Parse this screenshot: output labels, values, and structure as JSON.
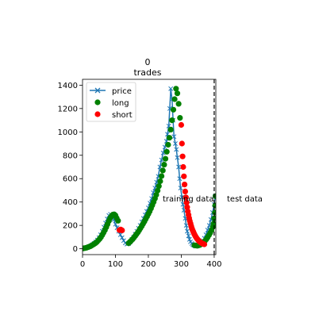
{
  "chart_data": {
    "type": "line",
    "title": "0\ntrades",
    "title_lines": [
      "0",
      "trades"
    ],
    "xlabel": "",
    "ylabel": "",
    "xlim": [
      0,
      405
    ],
    "ylim": [
      -50,
      1450
    ],
    "xticks": [
      0,
      100,
      200,
      300,
      400
    ],
    "yticks": [
      0,
      200,
      400,
      600,
      800,
      1000,
      1200,
      1400
    ],
    "grid": false,
    "legend_position": "top-left",
    "legend": [
      "price",
      "long",
      "short"
    ],
    "split_x": 400,
    "annotations": [
      "training data",
      "test data"
    ],
    "colors": {
      "price": "#1f77b4",
      "long": "#008000",
      "short": "#ff0000",
      "split": "#000000"
    },
    "series": [
      {
        "name": "price",
        "marker": "x",
        "x": [
          0,
          5,
          10,
          15,
          20,
          25,
          30,
          35,
          40,
          45,
          50,
          55,
          60,
          65,
          70,
          75,
          80,
          85,
          90,
          95,
          100,
          105,
          110,
          115,
          120,
          125,
          130,
          135,
          140,
          145,
          150,
          155,
          160,
          165,
          170,
          175,
          180,
          185,
          190,
          195,
          200,
          205,
          210,
          215,
          220,
          225,
          230,
          235,
          240,
          245,
          250,
          255,
          258,
          262,
          265,
          268,
          272,
          275,
          278,
          282,
          285,
          288,
          292,
          295,
          298,
          302,
          305,
          308,
          312,
          315,
          318,
          322,
          325,
          328,
          332,
          335,
          338,
          342,
          345,
          350,
          355,
          360,
          365,
          370,
          375,
          380,
          385,
          390,
          395,
          400,
          403
        ],
        "values": [
          2,
          5,
          8,
          12,
          18,
          25,
          35,
          45,
          58,
          75,
          95,
          120,
          150,
          185,
          220,
          255,
          285,
          295,
          280,
          250,
          210,
          180,
          150,
          120,
          95,
          70,
          50,
          40,
          45,
          60,
          80,
          100,
          125,
          150,
          175,
          200,
          230,
          260,
          290,
          320,
          350,
          390,
          430,
          480,
          520,
          570,
          620,
          700,
          760,
          820,
          870,
          920,
          980,
          1050,
          1200,
          1370,
          1280,
          1100,
          960,
          900,
          850,
          780,
          700,
          600,
          520,
          440,
          380,
          330,
          260,
          200,
          150,
          110,
          80,
          60,
          45,
          35,
          30,
          25,
          22,
          30,
          40,
          55,
          70,
          90,
          120,
          160,
          200,
          250,
          310,
          380,
          450
        ]
      },
      {
        "name": "long",
        "marker": "o",
        "x": [
          0,
          4,
          8,
          12,
          16,
          20,
          24,
          28,
          32,
          36,
          40,
          44,
          48,
          52,
          56,
          60,
          64,
          68,
          72,
          76,
          80,
          84,
          88,
          92,
          96,
          100,
          104,
          108,
          140,
          144,
          148,
          152,
          156,
          160,
          164,
          168,
          172,
          176,
          180,
          184,
          188,
          192,
          196,
          200,
          204,
          208,
          212,
          216,
          220,
          224,
          228,
          232,
          236,
          240,
          244,
          248,
          252,
          256,
          260,
          264,
          268,
          272,
          276,
          280,
          284,
          288,
          292,
          296,
          340,
          344,
          348,
          352,
          356,
          360,
          364,
          368,
          372,
          376,
          380,
          384,
          388,
          392,
          396,
          398,
          400,
          402,
          403,
          404
        ],
        "values": [
          2,
          4,
          6,
          9,
          13,
          17,
          22,
          28,
          35,
          42,
          50,
          60,
          72,
          85,
          100,
          118,
          138,
          160,
          185,
          210,
          238,
          262,
          280,
          292,
          295,
          285,
          262,
          240,
          48,
          58,
          70,
          82,
          95,
          110,
          125,
          140,
          158,
          176,
          195,
          214,
          234,
          255,
          276,
          298,
          320,
          345,
          372,
          400,
          430,
          462,
          498,
          536,
          578,
          622,
          670,
          720,
          770,
          830,
          890,
          950,
          1020,
          1100,
          1190,
          1280,
          1370,
          1330,
          1240,
          1120,
          30,
          28,
          26,
          28,
          32,
          38,
          46,
          56,
          68,
          82,
          98,
          116,
          136,
          160,
          188,
          215,
          260,
          310,
          370,
          450
        ]
      },
      {
        "name": "short",
        "marker": "o",
        "x": [
          112,
          116,
          120,
          300,
          302,
          304,
          306,
          308,
          310,
          312,
          314,
          316,
          318,
          320,
          322,
          324,
          326,
          328,
          330,
          332,
          334,
          336,
          338,
          340,
          342,
          344,
          346,
          348,
          350,
          352,
          354,
          356,
          358,
          360,
          362,
          364,
          366,
          368,
          370
        ],
        "values": [
          160,
          165,
          158,
          1060,
          900,
          790,
          700,
          620,
          550,
          490,
          440,
          395,
          355,
          320,
          290,
          262,
          238,
          216,
          196,
          178,
          162,
          148,
          136,
          124,
          113,
          103,
          94,
          86,
          79,
          72,
          66,
          61,
          56,
          52,
          48,
          45,
          42,
          40,
          38
        ]
      }
    ]
  }
}
